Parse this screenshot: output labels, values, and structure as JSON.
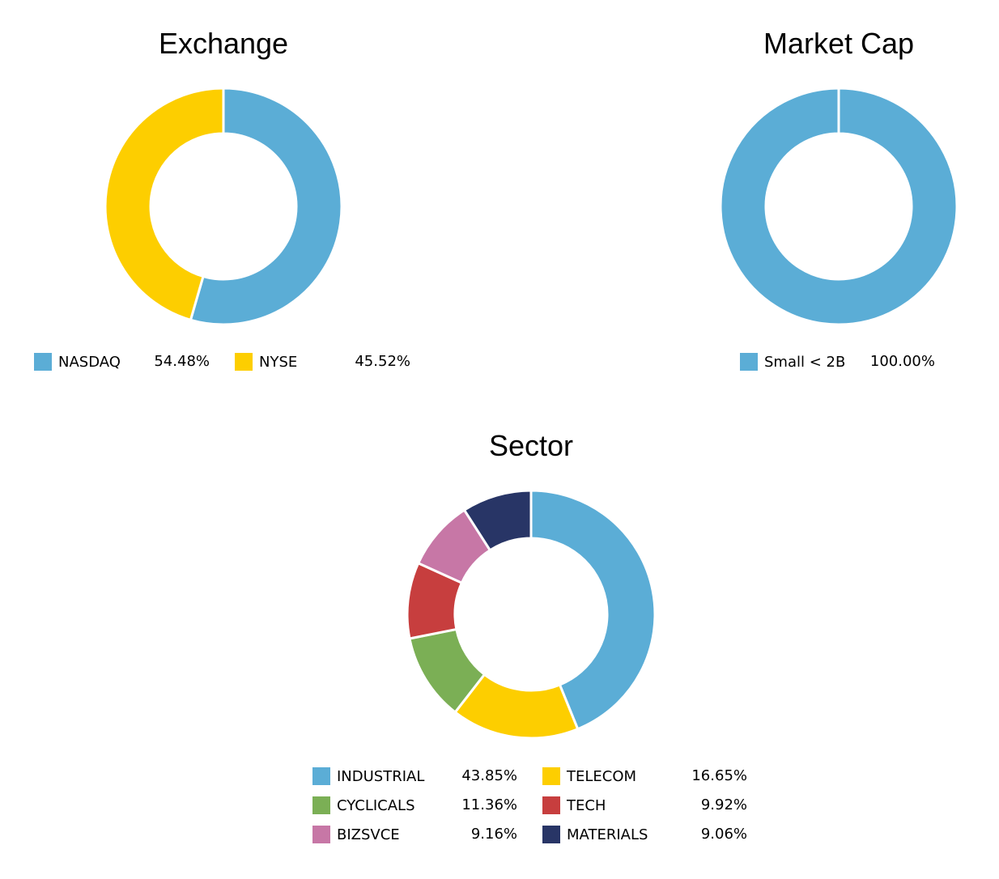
{
  "chart_data": [
    {
      "type": "pie",
      "title": "Exchange",
      "categories": [
        "NASDAQ",
        "NYSE"
      ],
      "values": [
        54.48,
        45.52
      ],
      "value_labels": [
        "54.48%",
        "45.52%"
      ],
      "colors": [
        "#5BADD6",
        "#FDCE00"
      ],
      "hole": true,
      "legend_placement": "bottom"
    },
    {
      "type": "pie",
      "title": "Market Cap",
      "categories": [
        "Small < 2B"
      ],
      "values": [
        100.0
      ],
      "value_labels": [
        "100.00%"
      ],
      "colors": [
        "#5BADD6"
      ],
      "hole": true,
      "legend_placement": "bottom"
    },
    {
      "type": "pie",
      "title": "Sector",
      "categories": [
        "INDUSTRIAL",
        "TELECOM",
        "CYCLICALS",
        "TECH",
        "BIZSVCE",
        "MATERIALS"
      ],
      "values": [
        43.85,
        16.65,
        11.36,
        9.92,
        9.16,
        9.06
      ],
      "value_labels": [
        "43.85%",
        "16.65%",
        "11.36%",
        "9.92%",
        "9.16%",
        "9.06%"
      ],
      "colors": [
        "#5BADD6",
        "#FDCE00",
        "#7BAF55",
        "#C73E3E",
        "#C777A6",
        "#283566"
      ],
      "hole": true,
      "legend_placement": "bottom"
    }
  ]
}
